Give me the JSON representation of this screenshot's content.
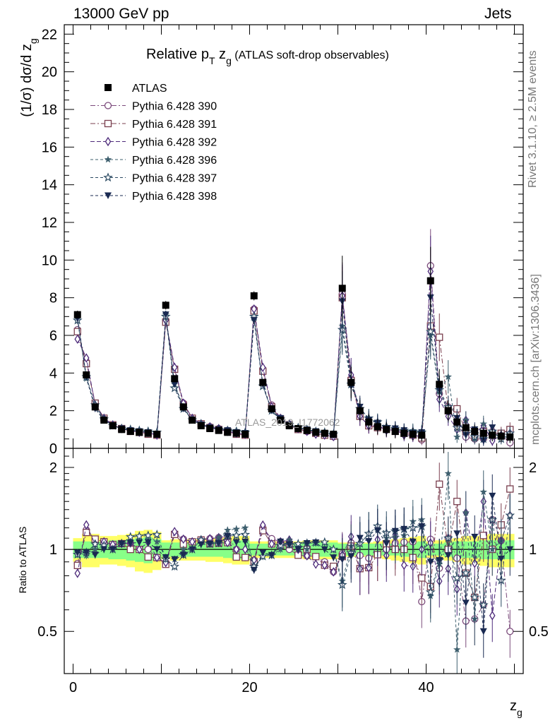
{
  "header": {
    "left": "13000 GeV pp",
    "right": "Jets"
  },
  "side": {
    "rivet": "Rivet 3.1.10, ≥ 2.5M events",
    "mcplots": "mcplots.cern.ch [arXiv:1306.3436]"
  },
  "watermark": "ATLAS_2019_I1772062",
  "ratio_ylabel": "Ratio to ATLAS",
  "colors": {
    "ATLAS": "#000000",
    "p390": "#7b4a7b",
    "p391": "#7a3f4f",
    "p392": "#4d2a7a",
    "p396": "#3e5f6e",
    "p397": "#2b4a62",
    "p398": "#1a2a52",
    "band_outer": "#ffff66",
    "band_inner": "#88ff88"
  },
  "chart_data": [
    {
      "type": "scatter",
      "title": "Relative p_T z_g (ATLAS soft-drop observables)",
      "xlabel": "z_g",
      "ylabel": "(1/σ) dσ/d z_g",
      "xlim": [
        -1,
        51
      ],
      "ylim": [
        0,
        22.5
      ],
      "yticks": [
        0,
        2,
        4,
        6,
        8,
        10,
        12,
        14,
        16,
        18,
        20,
        22
      ],
      "xticks": [
        0,
        20,
        40
      ],
      "legend_position": "top-left",
      "x": [
        0.5,
        1.5,
        2.5,
        3.5,
        4.5,
        5.5,
        6.5,
        7.5,
        8.5,
        9.5,
        10.5,
        11.5,
        12.5,
        13.5,
        14.5,
        15.5,
        16.5,
        17.5,
        18.5,
        19.5,
        20.5,
        21.5,
        22.5,
        23.5,
        24.5,
        25.5,
        26.5,
        27.5,
        28.5,
        29.5,
        30.5,
        31.5,
        32.5,
        33.5,
        34.5,
        35.5,
        36.5,
        37.5,
        38.5,
        39.5,
        40.5,
        41.5,
        42.5,
        43.5,
        44.5,
        45.5,
        46.5,
        47.5,
        48.5,
        49.5
      ],
      "series": [
        {
          "name": "ATLAS",
          "marker": "square-filled",
          "values": [
            7.1,
            3.9,
            2.2,
            1.5,
            1.2,
            1.0,
            0.9,
            0.85,
            0.8,
            0.75,
            7.6,
            3.7,
            2.2,
            1.5,
            1.2,
            1.05,
            0.95,
            0.85,
            0.8,
            0.75,
            8.1,
            3.5,
            2.1,
            1.5,
            1.2,
            1.05,
            0.95,
            0.85,
            0.8,
            0.75,
            8.5,
            3.5,
            2.0,
            1.4,
            1.15,
            1.0,
            0.9,
            0.8,
            0.75,
            0.7,
            8.9,
            3.4,
            2.0,
            1.4,
            1.1,
            0.9,
            0.8,
            0.7,
            0.65,
            0.6
          ]
        },
        {
          "name": "Pythia 6.428 390",
          "marker": "circle-open",
          "values": [
            6.3,
            4.6,
            2.4,
            1.6,
            1.25,
            1.05,
            0.95,
            0.85,
            0.8,
            0.7,
            6.8,
            4.2,
            2.4,
            1.6,
            1.3,
            1.15,
            1.05,
            0.95,
            0.8,
            0.7,
            7.4,
            4.2,
            2.3,
            1.6,
            1.2,
            1.0,
            0.9,
            0.8,
            0.72,
            0.62,
            8.2,
            3.7,
            1.9,
            1.3,
            1.1,
            1.0,
            0.95,
            0.85,
            0.8,
            0.45,
            9.7,
            2.9,
            2.2,
            1.3,
            0.6,
            0.5,
            0.5,
            0.9,
            0.7,
            0.3
          ]
        },
        {
          "name": "Pythia 6.428 391",
          "marker": "square-open",
          "values": [
            6.2,
            4.5,
            2.4,
            1.6,
            1.25,
            1.05,
            0.9,
            0.85,
            0.75,
            0.7,
            6.7,
            4.2,
            2.3,
            1.6,
            1.3,
            1.1,
            1.0,
            0.9,
            0.75,
            0.7,
            7.3,
            4.1,
            2.2,
            1.55,
            1.25,
            1.0,
            0.95,
            0.8,
            0.7,
            0.65,
            8.0,
            3.6,
            1.7,
            1.2,
            1.1,
            1.05,
            0.9,
            0.8,
            0.7,
            0.55,
            6.5,
            5.9,
            2.0,
            2.1,
            0.9,
            0.6,
            0.9,
            0.7,
            0.8,
            1.0
          ]
        },
        {
          "name": "Pythia 6.428 392",
          "marker": "diamond-open",
          "values": [
            5.8,
            4.8,
            2.3,
            1.6,
            1.25,
            1.05,
            0.95,
            0.85,
            0.85,
            0.7,
            6.8,
            4.3,
            2.4,
            1.6,
            1.3,
            1.15,
            1.05,
            0.9,
            0.8,
            0.75,
            7.4,
            4.3,
            2.2,
            1.6,
            1.3,
            1.05,
            0.9,
            0.75,
            0.7,
            0.62,
            8.1,
            3.9,
            1.7,
            1.2,
            1.25,
            0.95,
            1.0,
            0.7,
            0.65,
            0.7,
            9.4,
            2.6,
            1.7,
            1.0,
            1.5,
            0.8,
            1.2,
            0.4,
            0.7,
            0.8
          ]
        },
        {
          "name": "Pythia 6.428 396",
          "marker": "star-filled",
          "values": [
            6.9,
            3.7,
            2.2,
            1.55,
            1.2,
            1.05,
            1.0,
            0.95,
            0.9,
            0.8,
            7.1,
            3.4,
            2.2,
            1.5,
            1.3,
            1.1,
            1.05,
            1.0,
            0.95,
            0.9,
            6.9,
            3.3,
            2.0,
            1.5,
            1.3,
            1.1,
            0.95,
            0.9,
            0.85,
            0.75,
            6.5,
            3.6,
            2.1,
            1.6,
            1.35,
            1.1,
            1.0,
            0.9,
            0.95,
            0.9,
            6.0,
            3.0,
            3.8,
            0.6,
            1.5,
            0.5,
            1.3,
            0.7,
            0.7,
            0.8
          ]
        },
        {
          "name": "Pythia 6.428 397",
          "marker": "star-open",
          "values": [
            6.8,
            3.8,
            2.3,
            1.55,
            1.2,
            1.05,
            1.0,
            0.95,
            0.9,
            0.85,
            7.0,
            3.2,
            2.1,
            1.5,
            1.3,
            1.1,
            1.0,
            0.95,
            0.9,
            0.85,
            7.0,
            3.3,
            2.0,
            1.55,
            1.25,
            1.1,
            1.0,
            0.9,
            0.85,
            0.75,
            6.3,
            3.4,
            2.1,
            1.6,
            1.4,
            1.15,
            1.05,
            0.95,
            0.9,
            0.85,
            6.2,
            3.1,
            2.2,
            1.1,
            0.9,
            0.6,
            0.5,
            0.9,
            0.5,
            0.8
          ]
        },
        {
          "name": "Pythia 6.428 398",
          "marker": "triangle-down-filled",
          "values": [
            6.9,
            3.8,
            2.1,
            1.5,
            1.2,
            1.05,
            0.95,
            0.9,
            0.85,
            0.75,
            7.1,
            3.4,
            2.1,
            1.5,
            1.25,
            1.1,
            1.0,
            0.95,
            0.85,
            0.8,
            6.8,
            3.4,
            2.0,
            1.6,
            1.25,
            1.05,
            1.0,
            0.9,
            0.8,
            0.7,
            7.8,
            3.3,
            2.2,
            1.5,
            1.35,
            1.05,
            1.05,
            0.95,
            0.8,
            0.85,
            8.0,
            3.1,
            1.9,
            1.6,
            0.7,
            1.0,
            0.4,
            1.1,
            0.6,
            0.6
          ]
        }
      ]
    },
    {
      "type": "scatter",
      "xlabel": "z_g",
      "ylabel": "Ratio to ATLAS",
      "xlim": [
        -1,
        51
      ],
      "ylim": [
        0.35,
        2.35
      ],
      "yticks": [
        0.5,
        1,
        2
      ],
      "xticks": [
        0,
        20,
        40
      ],
      "reference_line": 1,
      "bands": {
        "inner": [
          0.07,
          0.07,
          0.07,
          0.07,
          0.08,
          0.08,
          0.09,
          0.1,
          0.11,
          0.09,
          0.06,
          0.06,
          0.06,
          0.06,
          0.06,
          0.06,
          0.06,
          0.07,
          0.08,
          0.08,
          0.05,
          0.05,
          0.05,
          0.05,
          0.05,
          0.05,
          0.06,
          0.06,
          0.06,
          0.06,
          0.05,
          0.05,
          0.05,
          0.05,
          0.05,
          0.05,
          0.05,
          0.06,
          0.06,
          0.07,
          0.05,
          0.05,
          0.06,
          0.07,
          0.07,
          0.07,
          0.08,
          0.08,
          0.08,
          0.08
        ],
        "outer": [
          0.1,
          0.14,
          0.14,
          0.12,
          0.12,
          0.13,
          0.14,
          0.17,
          0.18,
          0.16,
          0.08,
          0.09,
          0.09,
          0.09,
          0.09,
          0.1,
          0.1,
          0.11,
          0.12,
          0.12,
          0.07,
          0.07,
          0.07,
          0.07,
          0.07,
          0.07,
          0.08,
          0.08,
          0.08,
          0.08,
          0.06,
          0.06,
          0.06,
          0.06,
          0.07,
          0.08,
          0.09,
          0.1,
          0.11,
          0.12,
          0.07,
          0.08,
          0.09,
          0.1,
          0.12,
          0.12,
          0.13,
          0.14,
          0.14,
          0.14
        ]
      }
    }
  ]
}
